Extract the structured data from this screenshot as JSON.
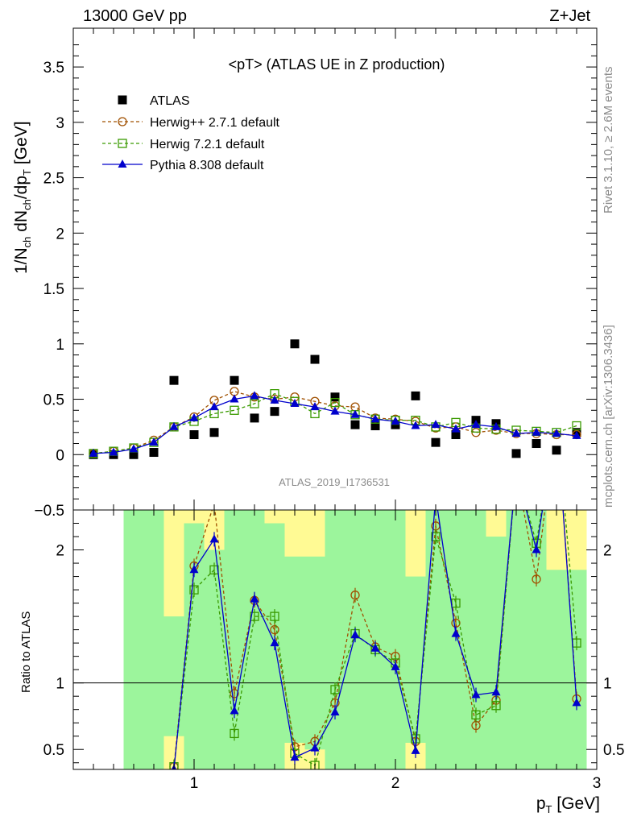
{
  "header": {
    "left": "13000 GeV pp",
    "right": "Z+Jet"
  },
  "side_texts": {
    "rivet": "Rivet 3.1.10, ≥ 2.6M events",
    "mcplots": "mcplots.cern.ch [arXiv:1306.3436]"
  },
  "chart_data": [
    {
      "type": "scatter",
      "panel": "main",
      "title": "<pT> (ATLAS UE in Z production)",
      "watermark": "ATLAS_2019_I1736531",
      "ylabel": "1/N_ch dN_ch/dp_T [GeV]",
      "xlim": [
        0.4,
        3.0
      ],
      "ylim": [
        -0.5,
        3.85
      ],
      "x_ticks": [
        1,
        2,
        3
      ],
      "y_ticks": [
        -0.5,
        0,
        0.5,
        1,
        1.5,
        2,
        2.5,
        3,
        3.5
      ],
      "y_tick_labels": [
        "−0.5",
        "0",
        "0.5",
        "1",
        "1.5",
        "2",
        "2.5",
        "3",
        "3.5"
      ],
      "legend": [
        "ATLAS",
        "Herwig++ 2.7.1 default",
        "Herwig 7.2.1 default",
        "Pythia 8.308 default"
      ],
      "legend_position": "top-left",
      "x": [
        0.5,
        0.6,
        0.7,
        0.8,
        0.9,
        1.0,
        1.1,
        1.2,
        1.3,
        1.4,
        1.5,
        1.6,
        1.7,
        1.8,
        1.9,
        2.0,
        2.1,
        2.2,
        2.3,
        2.4,
        2.5,
        2.6,
        2.7,
        2.8,
        2.9
      ],
      "series": [
        {
          "name": "ATLAS",
          "color": "#000000",
          "marker": "square",
          "values": [
            0.0,
            0.0,
            0.0,
            0.02,
            0.67,
            0.18,
            0.2,
            0.67,
            0.33,
            0.39,
            1.0,
            0.86,
            0.52,
            0.27,
            0.26,
            0.27,
            0.53,
            0.11,
            0.18,
            0.31,
            0.28,
            0.01,
            0.1,
            0.04,
            0.2
          ]
        },
        {
          "name": "Herwig++ 2.7.1 default",
          "color": "#a05000",
          "marker": "open-circle",
          "dash": true,
          "values": [
            0.01,
            0.03,
            0.06,
            0.13,
            0.25,
            0.34,
            0.49,
            0.57,
            0.52,
            0.5,
            0.52,
            0.48,
            0.44,
            0.43,
            0.33,
            0.32,
            0.3,
            0.24,
            0.25,
            0.2,
            0.22,
            0.19,
            0.19,
            0.18,
            0.18
          ]
        },
        {
          "name": "Herwig 7.2.1 default",
          "color": "#3a9a00",
          "marker": "open-square",
          "dash": true,
          "values": [
            0.01,
            0.03,
            0.06,
            0.11,
            0.25,
            0.3,
            0.37,
            0.4,
            0.46,
            0.55,
            0.48,
            0.37,
            0.47,
            0.36,
            0.32,
            0.31,
            0.31,
            0.25,
            0.29,
            0.24,
            0.23,
            0.22,
            0.21,
            0.2,
            0.26
          ]
        },
        {
          "name": "Pythia 8.308 default",
          "color": "#0000cc",
          "marker": "filled-triangle",
          "values": [
            0.01,
            0.02,
            0.05,
            0.11,
            0.25,
            0.33,
            0.43,
            0.5,
            0.53,
            0.49,
            0.46,
            0.43,
            0.39,
            0.36,
            0.32,
            0.3,
            0.26,
            0.27,
            0.23,
            0.27,
            0.25,
            0.19,
            0.2,
            0.19,
            0.17
          ]
        }
      ]
    },
    {
      "type": "line",
      "panel": "ratio",
      "ylabel": "Ratio to ATLAS",
      "xlabel": "p_T [GeV]",
      "xlim": [
        0.4,
        3.0
      ],
      "ylim": [
        0.35,
        2.3
      ],
      "reference_line": 1,
      "x_ticks": [
        1,
        2,
        3
      ],
      "x_tick_labels": [
        "1",
        "2",
        "3"
      ],
      "y_ticks": [
        0.5,
        1,
        2
      ],
      "y_tick_labels": [
        "0.5",
        "1",
        "2"
      ],
      "x": [
        0.9,
        1.0,
        1.1,
        1.2,
        1.3,
        1.4,
        1.5,
        1.6,
        1.7,
        1.8,
        1.9,
        2.0,
        2.1,
        2.2,
        2.3,
        2.4,
        2.5,
        2.6,
        2.7,
        2.8,
        2.9
      ],
      "bands": {
        "bins": [
          [
            0.65,
            0.85
          ],
          [
            0.85,
            0.95
          ],
          [
            0.95,
            1.05
          ],
          [
            1.05,
            1.15
          ],
          [
            1.15,
            1.25
          ],
          [
            1.25,
            1.35
          ],
          [
            1.35,
            1.45
          ],
          [
            1.45,
            1.55
          ],
          [
            1.55,
            1.65
          ],
          [
            1.65,
            1.75
          ],
          [
            1.75,
            1.85
          ],
          [
            1.85,
            1.95
          ],
          [
            1.95,
            2.05
          ],
          [
            2.05,
            2.15
          ],
          [
            2.15,
            2.25
          ],
          [
            2.25,
            2.35
          ],
          [
            2.35,
            2.45
          ],
          [
            2.45,
            2.55
          ],
          [
            2.55,
            2.65
          ],
          [
            2.65,
            2.75
          ],
          [
            2.75,
            2.95
          ]
        ],
        "green_low": [
          0.35,
          0.6,
          0.35,
          0.35,
          0.35,
          0.35,
          0.35,
          0.55,
          0.5,
          0.35,
          0.35,
          0.35,
          0.35,
          0.55,
          0.35,
          0.35,
          0.35,
          0.35,
          0.35,
          0.35,
          0.35
        ],
        "green_high": [
          2.3,
          1.5,
          2.2,
          2.0,
          2.3,
          2.3,
          2.2,
          1.95,
          1.95,
          2.3,
          2.3,
          2.3,
          2.3,
          1.8,
          2.3,
          2.3,
          2.3,
          2.1,
          2.3,
          2.3,
          1.85
        ],
        "yellow_low": [
          0.35,
          0.35,
          0.35,
          0.35,
          0.35,
          0.35,
          0.35,
          0.35,
          0.35,
          0.35,
          0.35,
          0.35,
          0.35,
          0.35,
          0.35,
          0.35,
          0.35,
          0.35,
          0.35,
          0.35,
          0.35
        ],
        "yellow_high": [
          2.3,
          2.3,
          2.3,
          2.3,
          2.3,
          2.3,
          2.3,
          2.3,
          2.3,
          2.3,
          2.3,
          2.3,
          2.3,
          2.3,
          2.3,
          2.3,
          2.3,
          2.3,
          2.3,
          2.3,
          2.3
        ],
        "green_color": "#9cf59c",
        "yellow_color": "#fffa94"
      },
      "series": [
        {
          "name": "Herwig++ 2.7.1 default",
          "color": "#a05000",
          "marker": "open-circle",
          "dash": true,
          "values": [
            0.37,
            1.88,
            2.35,
            0.92,
            1.62,
            1.4,
            0.52,
            0.56,
            0.85,
            1.66,
            1.27,
            1.2,
            0.56,
            2.18,
            1.45,
            0.68,
            0.87,
            2.6,
            1.78,
            3.0,
            0.88
          ]
        },
        {
          "name": "Herwig 7.2.1 default",
          "color": "#3a9a00",
          "marker": "open-square",
          "dash": true,
          "values": [
            0.37,
            1.7,
            1.85,
            0.62,
            1.5,
            1.5,
            0.47,
            0.38,
            0.95,
            1.37,
            1.25,
            1.15,
            0.58,
            2.1,
            1.6,
            0.76,
            0.83,
            2.6,
            2.05,
            3.0,
            1.3
          ]
        },
        {
          "name": "Pythia 8.308 default",
          "color": "#0000cc",
          "marker": "filled-triangle",
          "values": [
            0.35,
            1.85,
            2.08,
            0.79,
            1.63,
            1.3,
            0.44,
            0.51,
            0.78,
            1.36,
            1.26,
            1.12,
            0.49,
            2.4,
            1.37,
            0.91,
            0.93,
            2.6,
            2.0,
            3.0,
            0.85
          ]
        }
      ]
    }
  ]
}
